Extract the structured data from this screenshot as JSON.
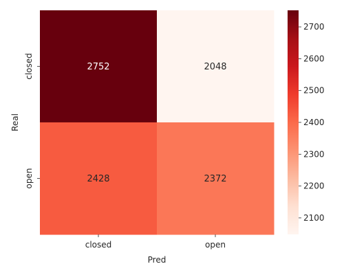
{
  "chart_data": {
    "type": "heatmap",
    "title": "",
    "xlabel": "Pred",
    "ylabel": "Real",
    "x_categories": [
      "closed",
      "open"
    ],
    "y_categories": [
      "closed",
      "open"
    ],
    "values": [
      [
        2752,
        2048
      ],
      [
        2428,
        2372
      ]
    ],
    "colormap": "Reds",
    "colorbar": {
      "range": [
        2048,
        2752
      ],
      "ticks": [
        2100,
        2200,
        2300,
        2400,
        2500,
        2600,
        2700
      ]
    },
    "annotations": true,
    "grid": false
  }
}
